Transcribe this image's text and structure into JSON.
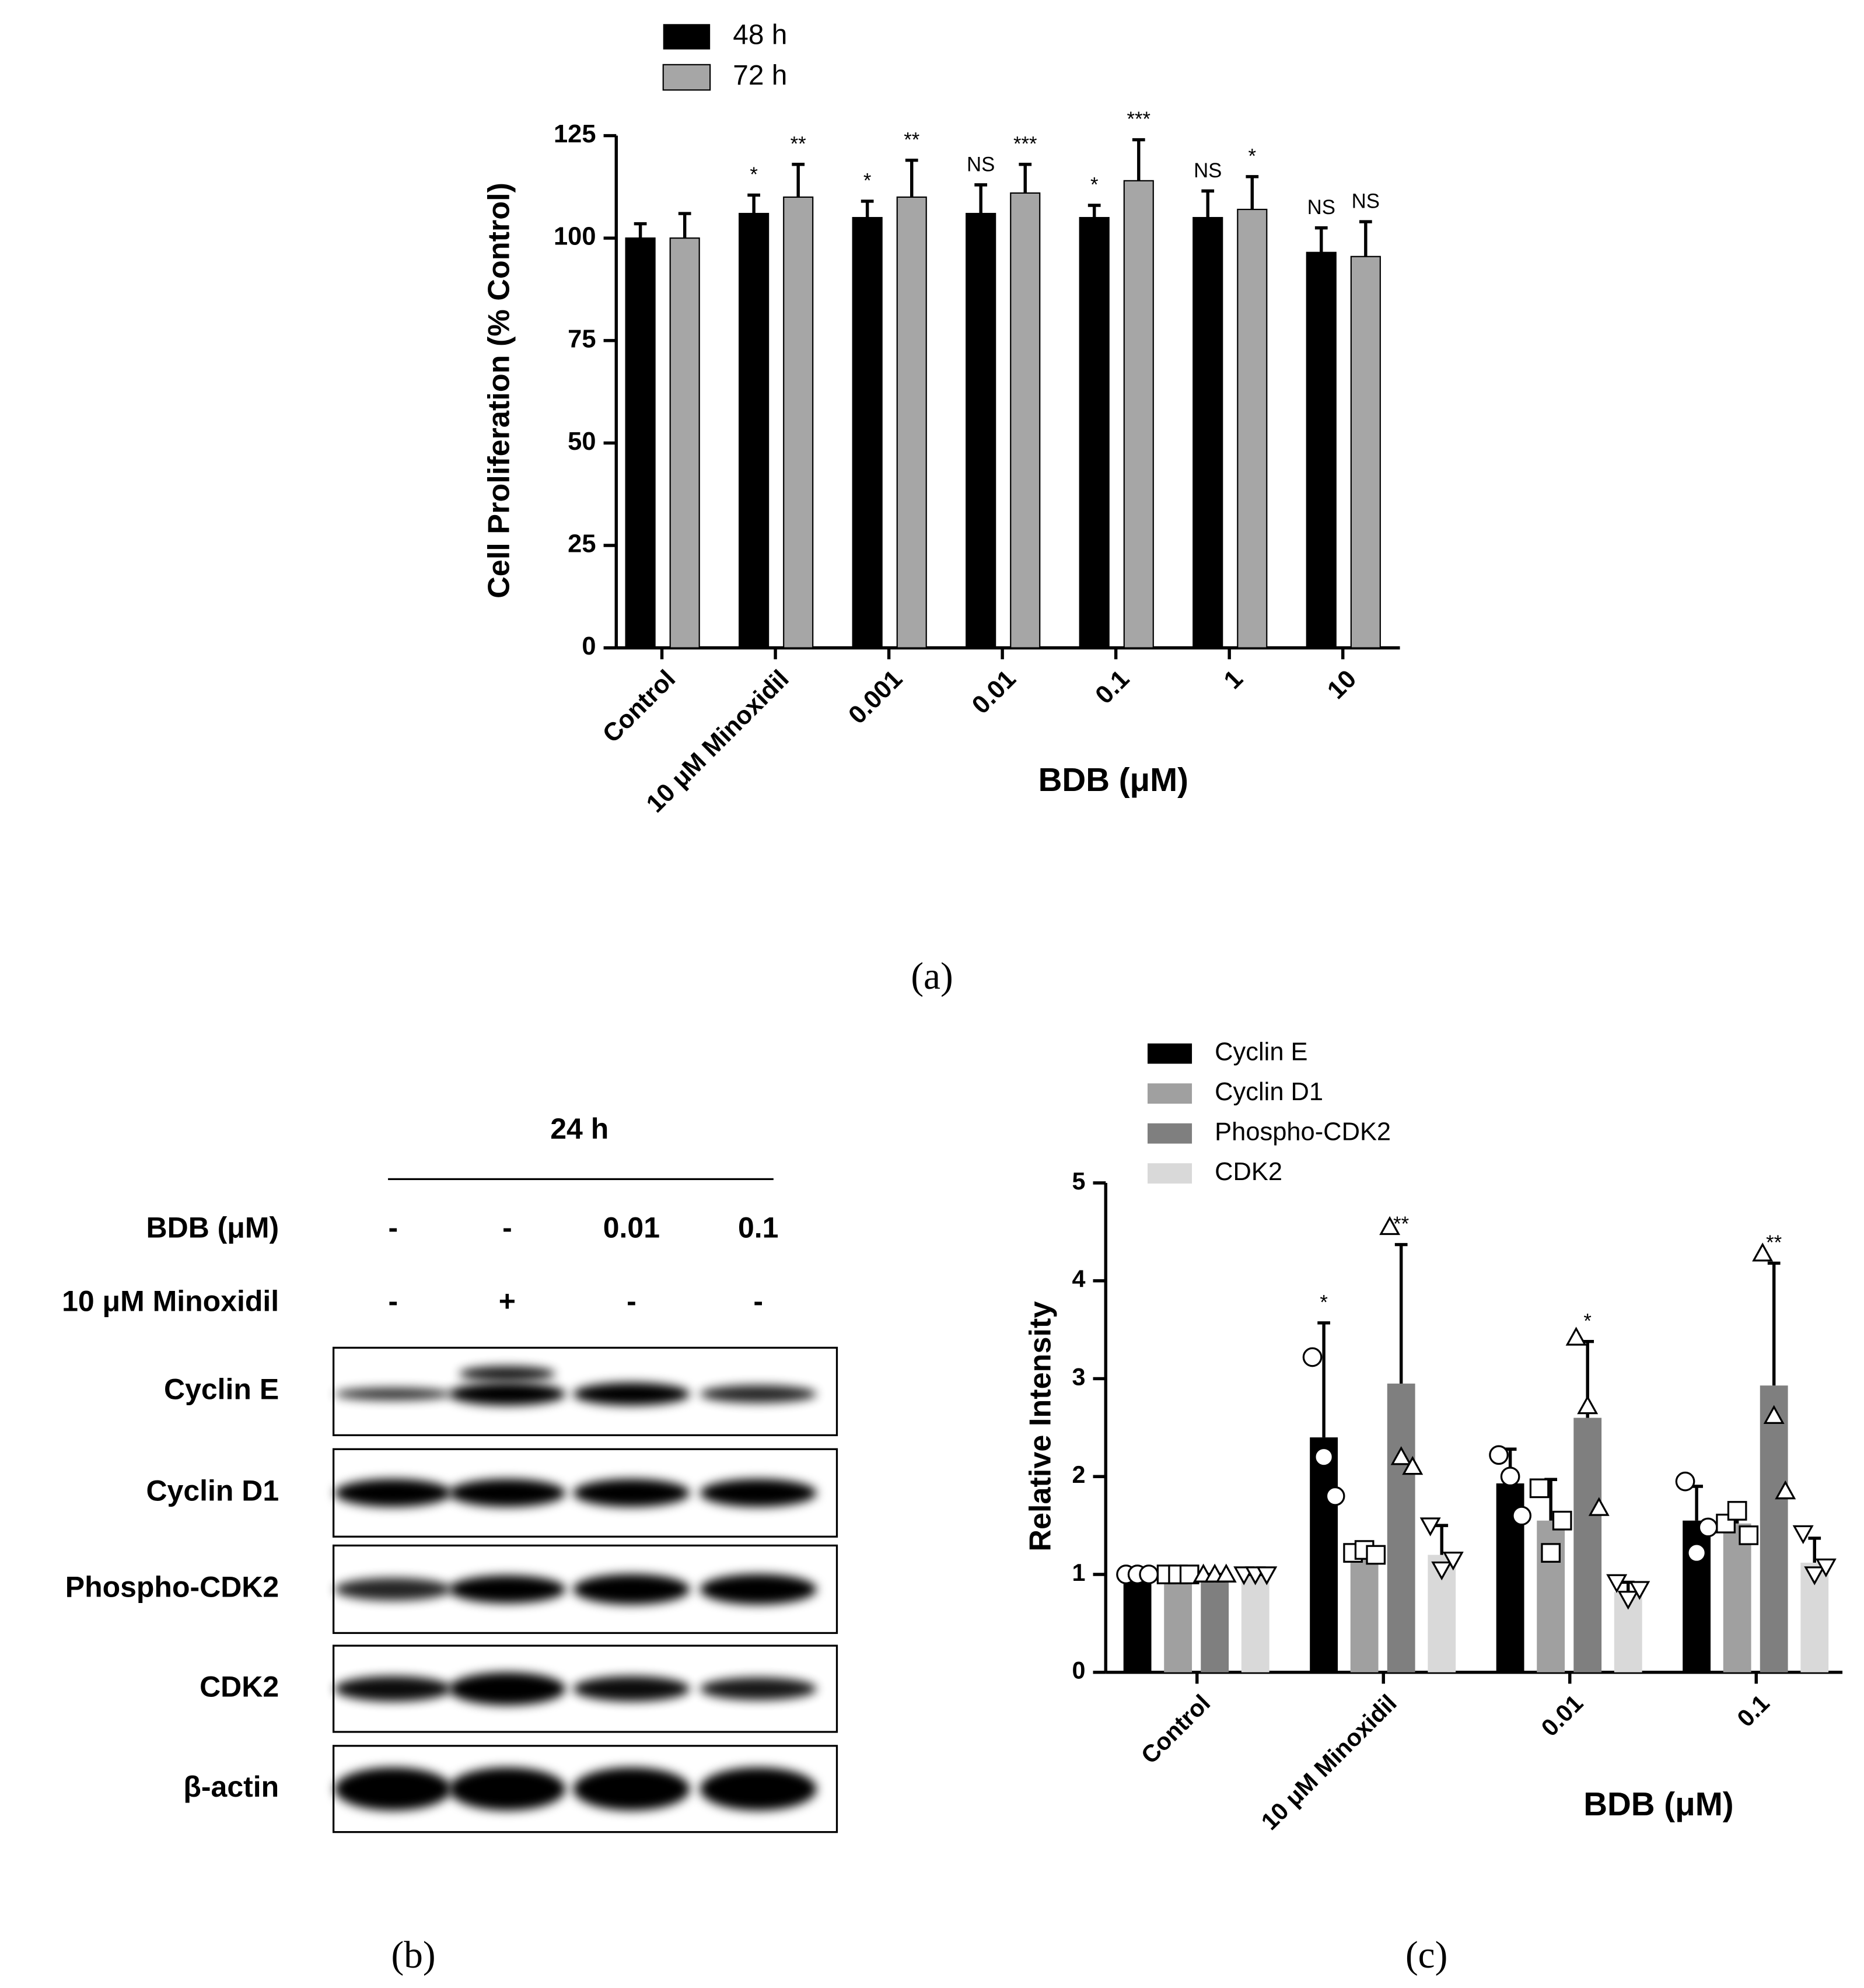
{
  "chart_data": [
    {
      "type": "bar",
      "panel": "a",
      "y_label": "Cell Proliferation (% Control)",
      "x_label": "BDB (μM)",
      "categories": [
        "Control",
        "10 μM Minoxidil",
        "0.001",
        "0.01",
        "0.1",
        "1",
        "10"
      ],
      "ylim": [
        0,
        125
      ],
      "yticks": [
        0,
        25,
        50,
        75,
        100,
        125
      ],
      "legend": "top-left",
      "series": [
        {
          "name": "48 h",
          "color": "#000000",
          "values": [
            100,
            106,
            105,
            106,
            105,
            105,
            96.5
          ],
          "errors": [
            3.5,
            4.5,
            4,
            7,
            3,
            6.5,
            6
          ],
          "annotations": [
            null,
            "*",
            "*",
            "NS",
            "*",
            "NS",
            "NS"
          ]
        },
        {
          "name": "72 h",
          "color": "#a6a6a6",
          "values": [
            100,
            110,
            110,
            111,
            114,
            107,
            95.5
          ],
          "errors": [
            6,
            8,
            9,
            7,
            10,
            8,
            8.5
          ],
          "annotations": [
            null,
            "**",
            "**",
            "***",
            "***",
            "*",
            "NS"
          ]
        }
      ]
    },
    {
      "type": "bar",
      "panel": "c",
      "y_label": "Relative Intensity",
      "x_label": "BDB (μM)",
      "categories": [
        "Control",
        "10 μM Minoxidil",
        "0.01",
        "0.1"
      ],
      "ylim": [
        0,
        5
      ],
      "yticks": [
        0,
        1,
        2,
        3,
        4,
        5
      ],
      "legend": "top-left",
      "series": [
        {
          "name": "Cyclin E",
          "color": "#000000",
          "marker": "circle",
          "values": [
            1,
            2.4,
            1.93,
            1.55
          ],
          "errors": [
            0,
            1.17,
            0.35,
            0.35
          ],
          "annotations": [
            null,
            "*",
            null,
            null
          ],
          "points": [
            [
              1,
              1,
              1
            ],
            [
              3.22,
              2.2,
              1.8
            ],
            [
              2.22,
              2.0,
              1.6
            ],
            [
              1.95,
              1.22,
              1.48
            ]
          ]
        },
        {
          "name": "Cyclin D1",
          "color": "#a0a0a0",
          "marker": "square",
          "values": [
            1,
            1.22,
            1.55,
            1.52
          ],
          "errors": [
            0,
            0.05,
            0.42,
            0.15
          ],
          "annotations": [
            null,
            null,
            null,
            null
          ],
          "points": [
            [
              1,
              1,
              1
            ],
            [
              1.22,
              1.25,
              1.2
            ],
            [
              1.88,
              1.22,
              1.55
            ],
            [
              1.52,
              1.65,
              1.4
            ]
          ]
        },
        {
          "name": "Phospho-CDK2",
          "color": "#7f7f7f",
          "marker": "triangle-up",
          "values": [
            1,
            2.95,
            2.6,
            2.93
          ],
          "errors": [
            0,
            1.42,
            0.78,
            1.25
          ],
          "annotations": [
            null,
            "**",
            "*",
            "**"
          ],
          "points": [
            [
              1,
              1,
              1
            ],
            [
              4.55,
              2.2,
              2.1
            ],
            [
              3.42,
              2.72,
              1.68
            ],
            [
              4.28,
              2.62,
              1.85
            ]
          ]
        },
        {
          "name": "CDK2",
          "color": "#d9d9d9",
          "marker": "triangle-down",
          "values": [
            1,
            1.2,
            0.82,
            1.12
          ],
          "errors": [
            0,
            0.3,
            0.1,
            0.25
          ],
          "annotations": [
            null,
            null,
            null,
            null
          ],
          "points": [
            [
              1,
              1,
              1
            ],
            [
              1.5,
              1.05,
              1.15
            ],
            [
              0.92,
              0.75,
              0.85
            ],
            [
              1.42,
              1.0,
              1.08
            ]
          ]
        }
      ]
    }
  ],
  "blot": {
    "time": "24 h",
    "conditions": [
      {
        "label": "BDB (μM)",
        "lanes": [
          "-",
          "-",
          "0.01",
          "0.1"
        ]
      },
      {
        "label": "10 μM Minoxidil",
        "lanes": [
          "-",
          "+",
          "-",
          "-"
        ]
      }
    ],
    "proteins": [
      "Cyclin E",
      "Cyclin D1",
      "Phospho-CDK2",
      "CDK2",
      "β-actin"
    ]
  },
  "panel_labels": [
    "(a)",
    "(b)",
    "(c)"
  ]
}
